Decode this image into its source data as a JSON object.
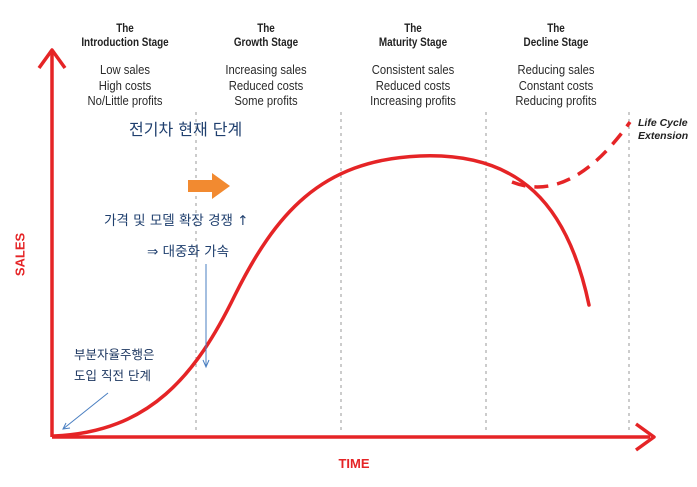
{
  "stages": [
    {
      "the": "The",
      "name": "Introduction Stage",
      "lines": [
        "Low sales",
        "High costs",
        "No/Little profits"
      ]
    },
    {
      "the": "The",
      "name": "Growth Stage",
      "lines": [
        "Increasing sales",
        "Reduced costs",
        "Some profits"
      ]
    },
    {
      "the": "The",
      "name": "Maturity Stage",
      "lines": [
        "Consistent sales",
        "Reduced costs",
        "Increasing profits"
      ]
    },
    {
      "the": "The",
      "name": "Decline Stage",
      "lines": [
        "Reducing sales",
        "Constant costs",
        "Reducing profits"
      ]
    }
  ],
  "axes": {
    "y_label": "SALES",
    "x_label": "TIME"
  },
  "extension": {
    "line1": "Life Cycle",
    "line2": "Extension"
  },
  "annotations": {
    "current": "전기차 현재 단계",
    "competition": "가격 및 모델 확장 경쟁 ↑",
    "mass_adoption": "⇒ 대중화 가속",
    "partial_line1": "부분자율주행은",
    "partial_line2": "도입 직전 단계"
  },
  "colors": {
    "curve": "#e52426",
    "arrow": "#f28a30",
    "annotation": "#1f3f6e",
    "pointer": "#4a7fc1",
    "divider": "#9a9a9a"
  }
}
